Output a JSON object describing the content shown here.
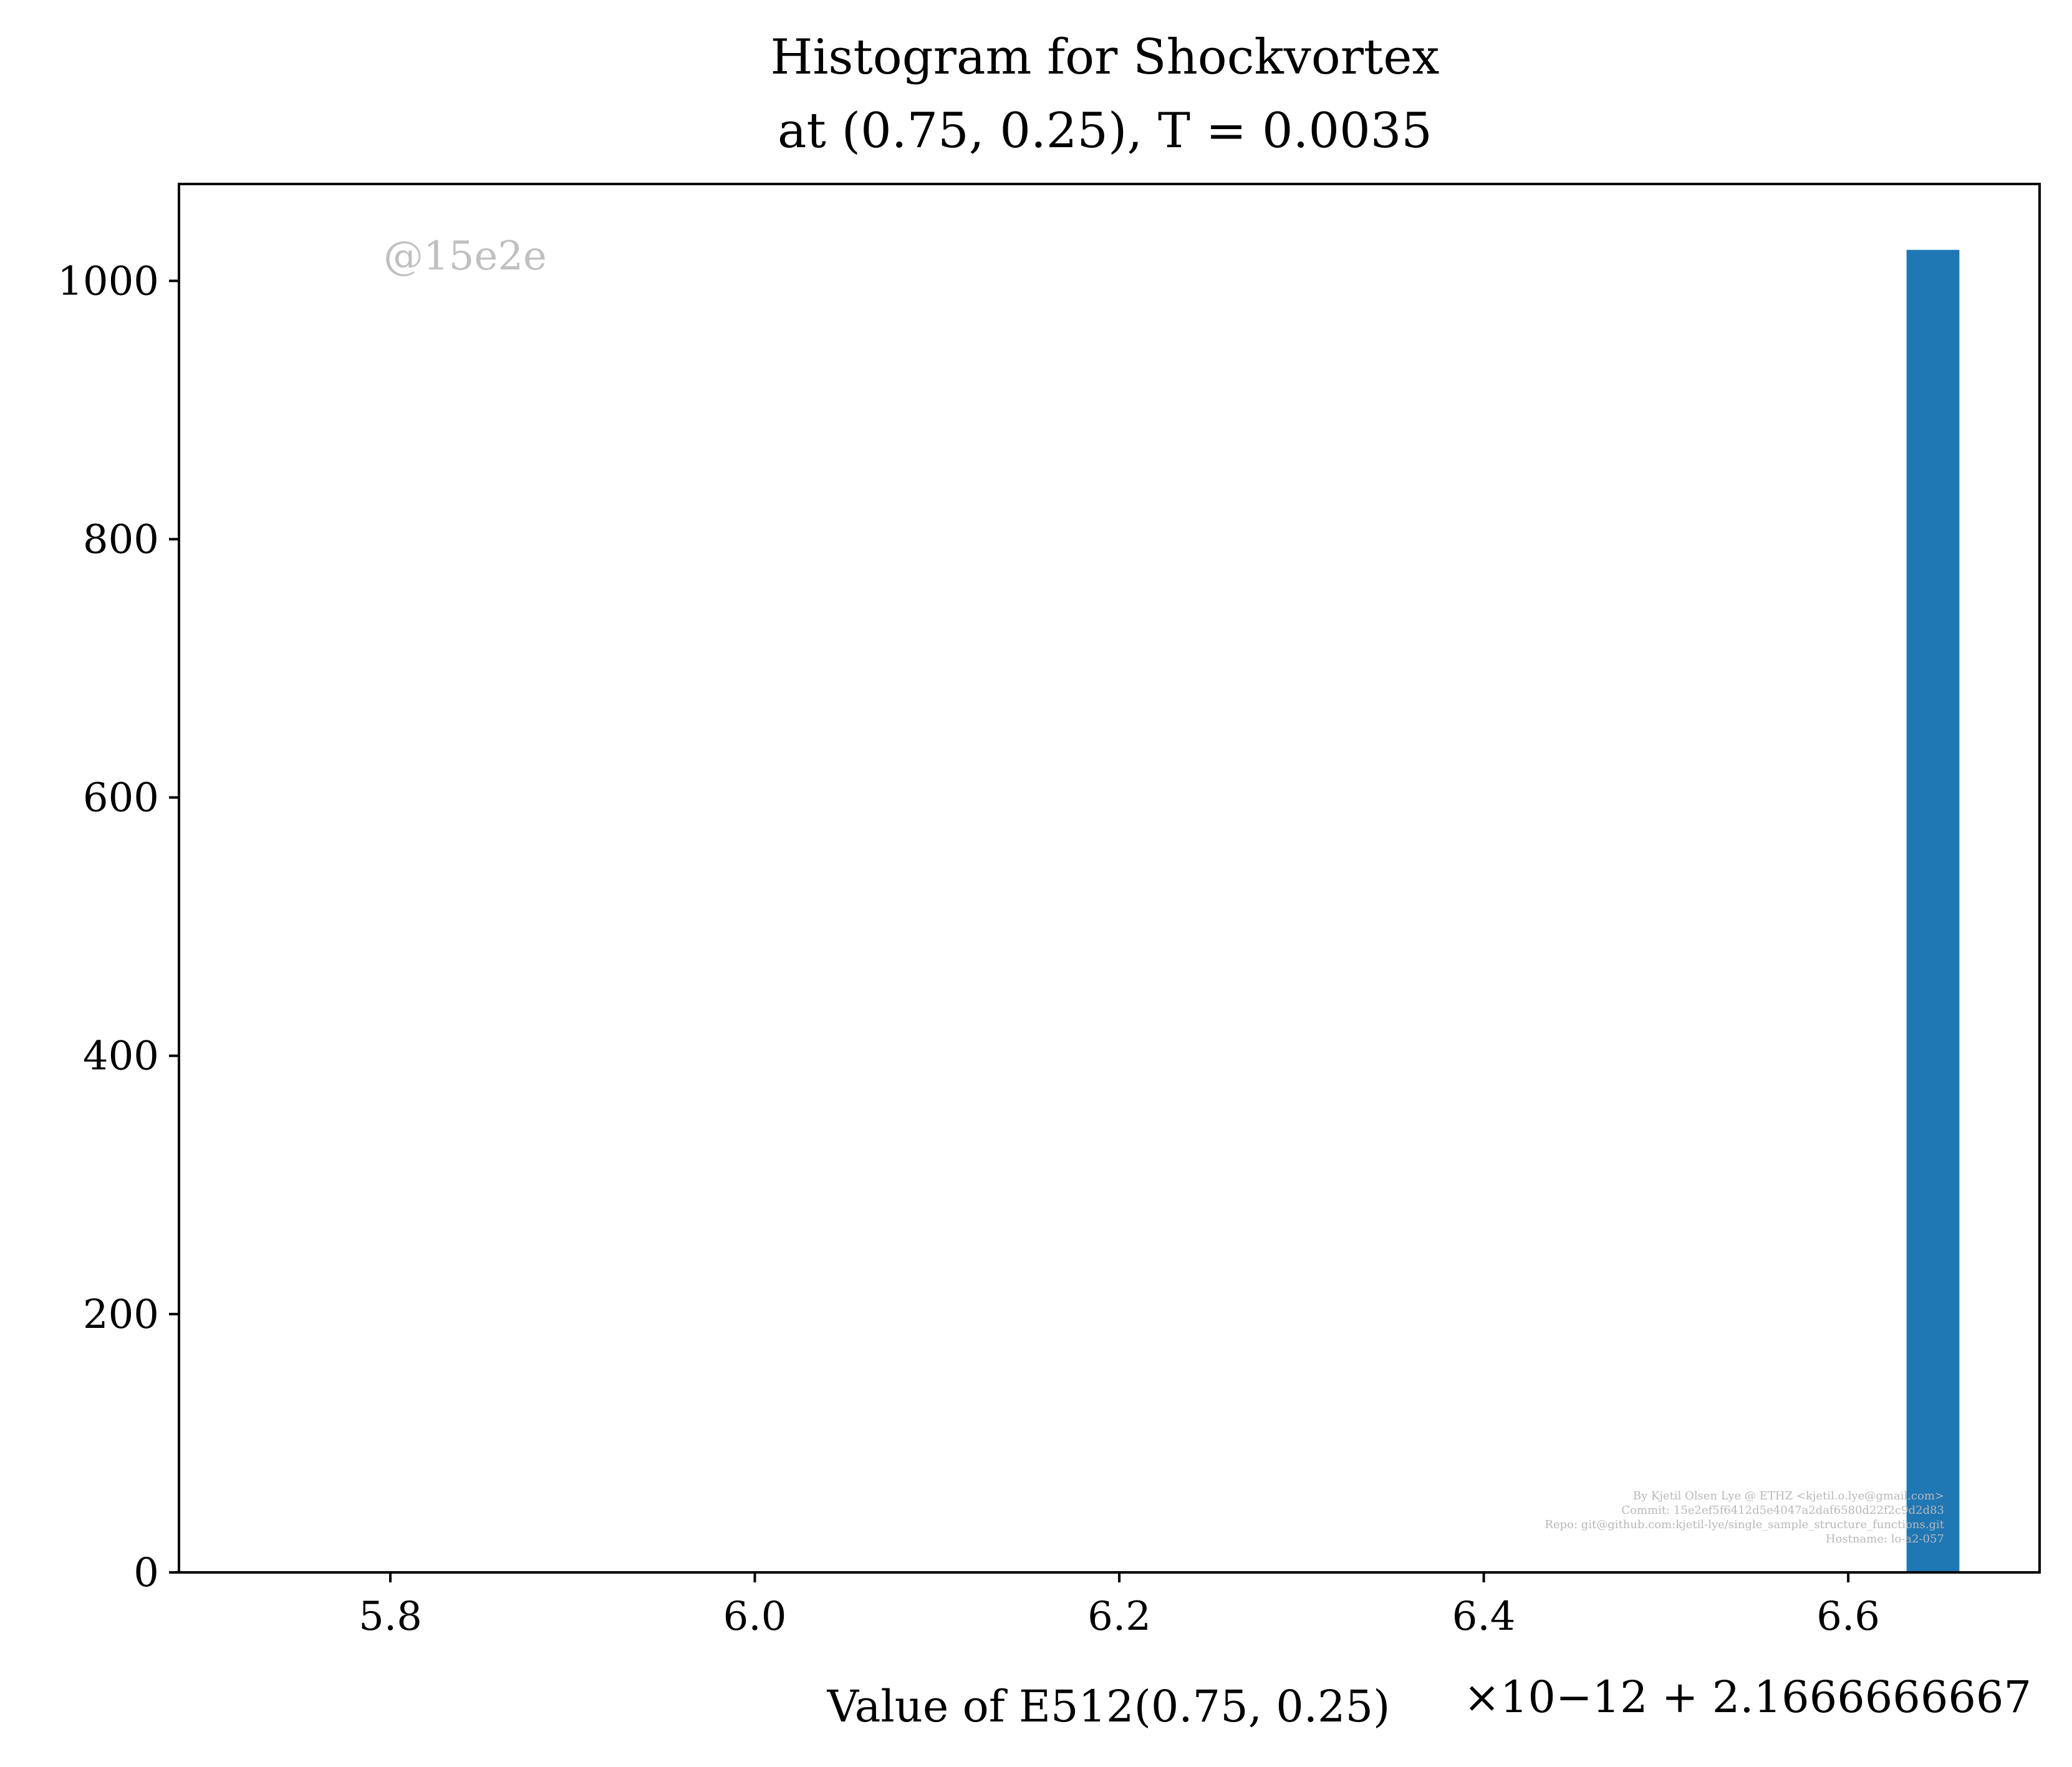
{
  "chart_data": {
    "type": "bar",
    "title_line1": "Histogram for Shockvortex",
    "title_line2": "at (0.75, 0.25), T = 0.0035",
    "xlabel": "Value of E512(0.75, 0.25)",
    "x_offset_label": "×10−12 + 2.1666666667",
    "ylabel": "",
    "x_ticks": [
      "5.8",
      "6.0",
      "6.2",
      "6.4",
      "6.6"
    ],
    "x_tick_values": [
      5.8,
      6.0,
      6.2,
      6.4,
      6.6
    ],
    "y_ticks": [
      "0",
      "200",
      "400",
      "600",
      "800",
      "1000"
    ],
    "y_tick_values": [
      0,
      200,
      400,
      600,
      800,
      1000
    ],
    "xlim": [
      5.684,
      6.705
    ],
    "ylim": [
      0,
      1075
    ],
    "bins": [
      {
        "x0": 6.632,
        "x1": 6.661,
        "value": 1024
      }
    ],
    "bar_color": "#1f77b4",
    "grid": false,
    "watermark": "@15e2e",
    "credits": [
      "By Kjetil Olsen Lye @ ETHZ <kjetil.o.lye@gmail.com>",
      "Commit: 15e2ef5f6412d5e4047a2daf6580d22f2c9d2d83",
      "Repo: git@github.com:kjetil-lye/single_sample_structure_functions.git",
      "Hostname: lo-a2-057"
    ]
  }
}
